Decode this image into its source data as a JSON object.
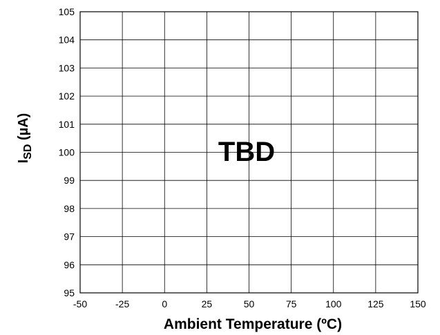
{
  "chart_data": {
    "type": "line",
    "title": "",
    "xlabel": "Ambient Temperature (ºC)",
    "ylabel_main": "I",
    "ylabel_sub": "SD",
    "ylabel_unit": " (µA)",
    "xlim": [
      -50,
      150
    ],
    "ylim": [
      95,
      105
    ],
    "x_ticks": [
      -50,
      -25,
      0,
      25,
      50,
      75,
      100,
      125,
      150
    ],
    "y_ticks": [
      95,
      96,
      97,
      98,
      99,
      100,
      101,
      102,
      103,
      104,
      105
    ],
    "grid": true,
    "series": [],
    "annotation": "TBD"
  }
}
